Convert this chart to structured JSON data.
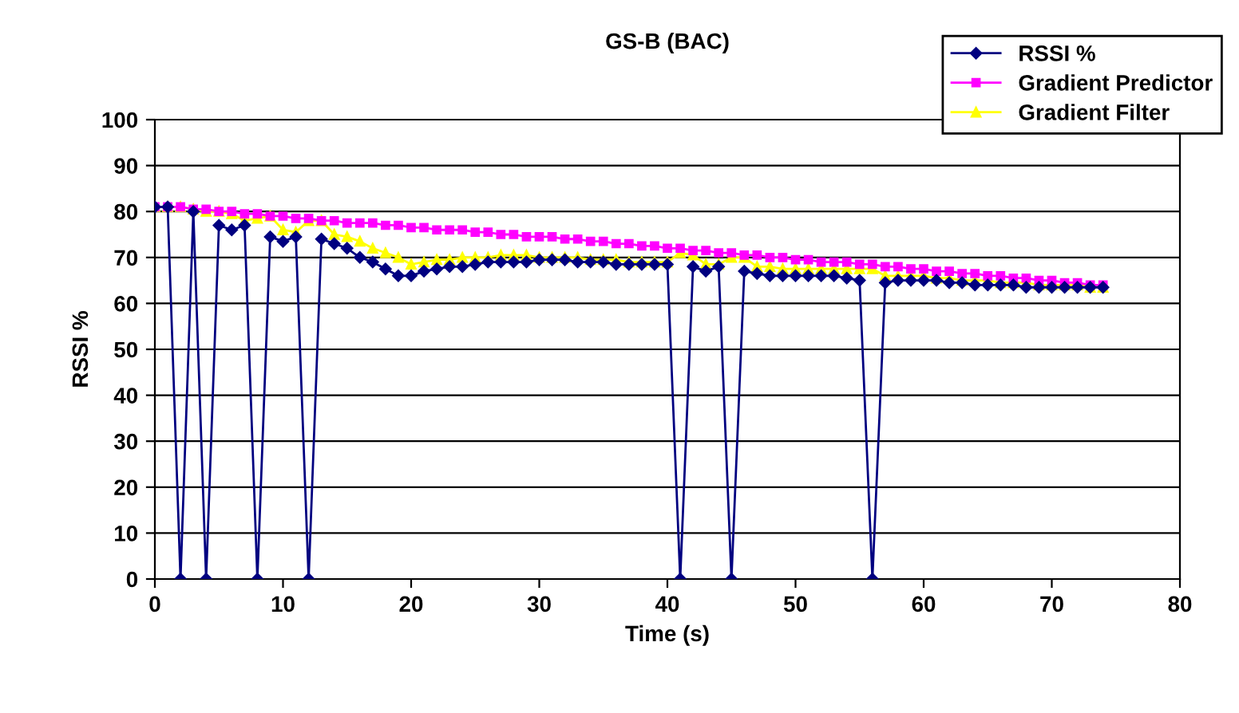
{
  "chart_data": {
    "type": "line",
    "title": "GS-B (BAC)",
    "xlabel": "Time (s)",
    "ylabel": "RSSI %",
    "x": [
      0,
      1,
      2,
      3,
      4,
      5,
      6,
      7,
      8,
      9,
      10,
      11,
      12,
      13,
      14,
      15,
      16,
      17,
      18,
      19,
      20,
      21,
      22,
      23,
      24,
      25,
      26,
      27,
      28,
      29,
      30,
      31,
      32,
      33,
      34,
      35,
      36,
      37,
      38,
      39,
      40,
      41,
      42,
      43,
      44,
      45,
      46,
      47,
      48,
      49,
      50,
      51,
      52,
      53,
      54,
      55,
      56,
      57,
      58,
      59,
      60,
      61,
      62,
      63,
      64,
      65,
      66,
      67,
      68,
      69,
      70,
      71,
      72,
      73,
      74
    ],
    "series": [
      {
        "name": "RSSI %",
        "color": "#000080",
        "marker": "diamond",
        "values": [
          81,
          81,
          0,
          80,
          0,
          77,
          76,
          77,
          0,
          74.5,
          73.5,
          74.5,
          0,
          74,
          73,
          72,
          70,
          69,
          67.5,
          66,
          66,
          67,
          67.5,
          68,
          68,
          68.5,
          69,
          69,
          69,
          69,
          69.5,
          69.5,
          69.5,
          69,
          69,
          69,
          68.5,
          68.5,
          68.5,
          68.5,
          68.5,
          0,
          68,
          67,
          68,
          0,
          67,
          66.5,
          66,
          66,
          66,
          66,
          66,
          66,
          65.5,
          65,
          0,
          64.5,
          65,
          65,
          65,
          65,
          64.5,
          64.5,
          64,
          64,
          64,
          64,
          63.5,
          63.5,
          63.5,
          63.5,
          63.5,
          63.5,
          63.5
        ]
      },
      {
        "name": "Gradient Predictor",
        "color": "#ff00ff",
        "marker": "square",
        "values": [
          81,
          81,
          81,
          80.5,
          80.5,
          80,
          80,
          79.5,
          79.5,
          79,
          79,
          78.5,
          78.5,
          78,
          78,
          77.5,
          77.5,
          77.5,
          77,
          77,
          76.5,
          76.5,
          76,
          76,
          76,
          75.5,
          75.5,
          75,
          75,
          74.5,
          74.5,
          74.5,
          74,
          74,
          73.5,
          73.5,
          73,
          73,
          72.5,
          72.5,
          72,
          72,
          71.5,
          71.5,
          71,
          71,
          70.5,
          70.5,
          70,
          70,
          69.5,
          69.5,
          69,
          69,
          69,
          68.5,
          68.5,
          68,
          68,
          67.5,
          67.5,
          67,
          67,
          66.5,
          66.5,
          66,
          66,
          65.5,
          65.5,
          65,
          65,
          64.5,
          64.5,
          64,
          64
        ]
      },
      {
        "name": "Gradient Filter",
        "color": "#ffff00",
        "marker": "triangle",
        "values": [
          81,
          81,
          81,
          80.5,
          80,
          80,
          79.5,
          78,
          78.5,
          79,
          76,
          75.5,
          78,
          78,
          75,
          74.5,
          73.5,
          72,
          71,
          70,
          68.5,
          69,
          69.5,
          69.5,
          70,
          70,
          70,
          70.5,
          70.5,
          70.5,
          70,
          70,
          70,
          70,
          69.5,
          69.5,
          69.5,
          69,
          69,
          69,
          69,
          71,
          70.5,
          68.5,
          68.5,
          70,
          70,
          68,
          68,
          67.5,
          67.5,
          67.5,
          67.5,
          67.5,
          67.5,
          67.5,
          67.5,
          66,
          66,
          66,
          66,
          65.5,
          65.5,
          65,
          65,
          65,
          64.5,
          64.5,
          64.5,
          64,
          64,
          64,
          64,
          63.5,
          63.5
        ]
      }
    ],
    "xlim": [
      0,
      80
    ],
    "xticks": [
      0,
      10,
      20,
      30,
      40,
      50,
      60,
      70,
      80
    ],
    "ylim": [
      0,
      100
    ],
    "yticks": [
      0,
      10,
      20,
      30,
      40,
      50,
      60,
      70,
      80,
      90,
      100
    ],
    "grid": "y",
    "legend": "top right",
    "line_style": "solid"
  }
}
